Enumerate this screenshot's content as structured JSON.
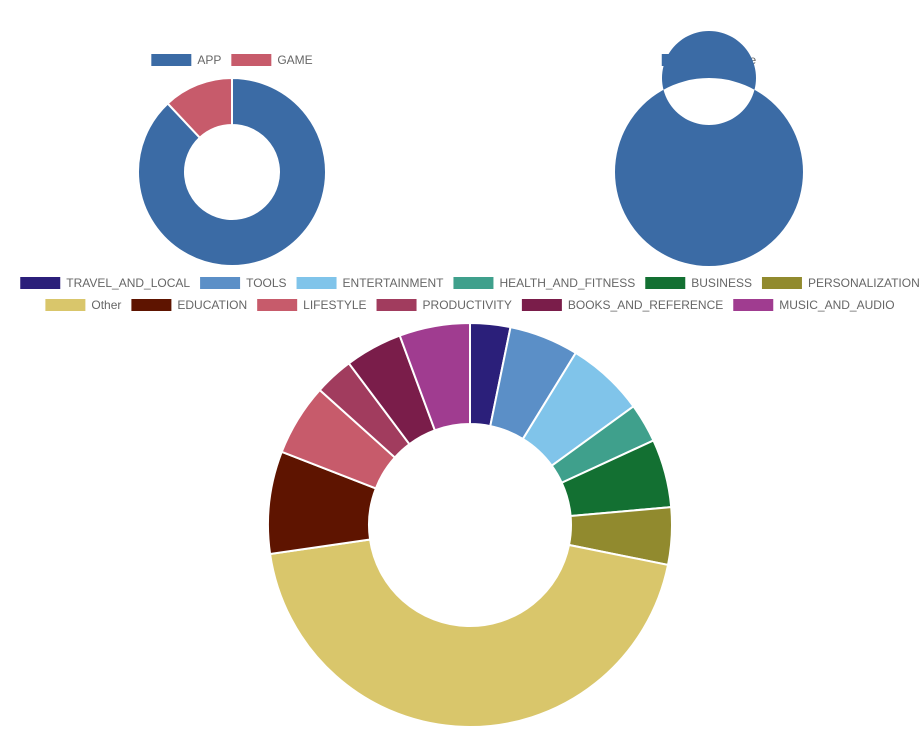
{
  "chart_data": [
    {
      "type": "doughnut",
      "categories": [
        "APP",
        "GAME"
      ],
      "values": [
        88,
        12
      ],
      "colors": [
        "#3b6ba5",
        "#c75b6b"
      ]
    },
    {
      "type": "doughnut",
      "categories": [
        "Available"
      ],
      "values": [
        100
      ],
      "colors": [
        "#3b6ba5"
      ]
    },
    {
      "type": "doughnut",
      "categories": [
        "TRAVEL_AND_LOCAL",
        "TOOLS",
        "ENTERTAINMENT",
        "HEALTH_AND_FITNESS",
        "BUSINESS",
        "PERSONALIZATION",
        "Other",
        "EDUCATION",
        "LIFESTYLE",
        "PRODUCTIVITY",
        "BOOKS_AND_REFERENCE",
        "MUSIC_AND_AUDIO"
      ],
      "values": [
        3.3,
        5.7,
        6.4,
        3.2,
        5.6,
        4.7,
        45.7,
        8.4,
        5.9,
        3.2,
        4.7,
        5.8
      ],
      "colors": [
        "#2b1f7a",
        "#5b8fc7",
        "#80c4ea",
        "#3fa08c",
        "#137032",
        "#918a2e",
        "#d9c66b",
        "#5e1400",
        "#c75b6b",
        "#a13c5e",
        "#7a1d4a",
        "#a03c90"
      ]
    }
  ]
}
